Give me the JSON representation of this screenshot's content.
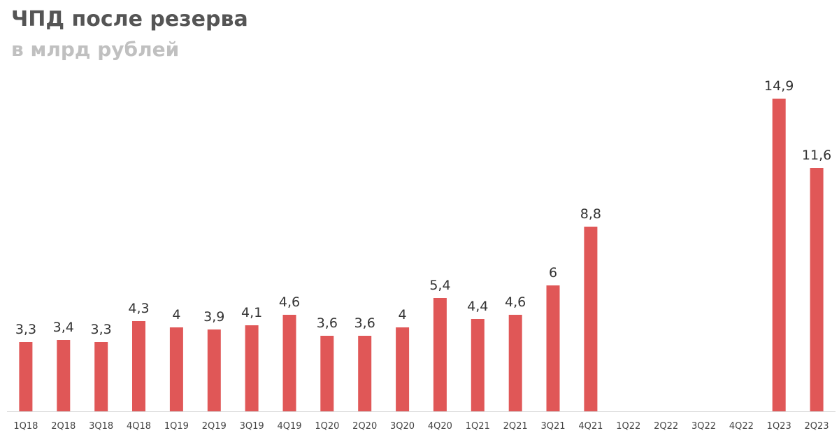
{
  "chart_data": {
    "type": "bar",
    "title": "ЧПД после резерва",
    "subtitle": "в млрд рублей",
    "categories": [
      "1Q18",
      "2Q18",
      "3Q18",
      "4Q18",
      "1Q19",
      "2Q19",
      "3Q19",
      "4Q19",
      "1Q20",
      "2Q20",
      "3Q20",
      "4Q20",
      "1Q21",
      "2Q21",
      "3Q21",
      "4Q21",
      "1Q22",
      "2Q22",
      "3Q22",
      "4Q22",
      "1Q23",
      "2Q23"
    ],
    "values": [
      3.3,
      3.4,
      3.3,
      4.3,
      4,
      3.9,
      4.1,
      4.6,
      3.6,
      3.6,
      4,
      5.4,
      4.4,
      4.6,
      6,
      8.8,
      null,
      null,
      null,
      null,
      14.9,
      11.6
    ],
    "value_labels": [
      "3,3",
      "3,4",
      "3,3",
      "4,3",
      "4",
      "3,9",
      "4,1",
      "4,6",
      "3,6",
      "3,6",
      "4",
      "5,4",
      "4,4",
      "4,6",
      "6",
      "8,8",
      "",
      "",
      "",
      "",
      "14,9",
      "11,6"
    ],
    "xlabel": "",
    "ylabel": "",
    "ylim": [
      0,
      15
    ],
    "grid": false,
    "legend": "none",
    "bar_color": "#e05757",
    "axis_color": "#d9d9d9"
  }
}
